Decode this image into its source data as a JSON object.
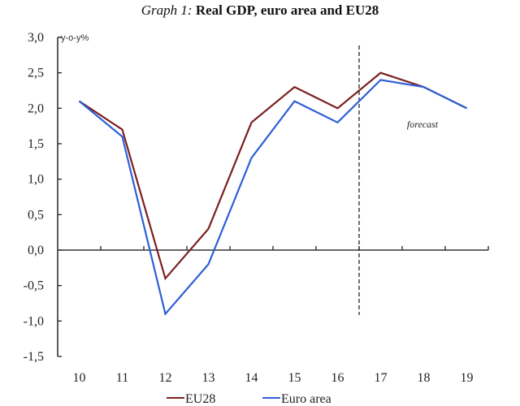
{
  "chart_data": {
    "type": "line",
    "title_prefix": "Graph 1:",
    "title": "Real GDP, euro area and EU28",
    "ylabel": "y-o-y%",
    "xlabel": "",
    "categories": [
      "10",
      "11",
      "12",
      "13",
      "14",
      "15",
      "16",
      "17",
      "18",
      "19"
    ],
    "ylim": [
      -1.5,
      3.0
    ],
    "yticks": [
      "3,0",
      "2,5",
      "2,0",
      "1,5",
      "1,0",
      "0,5",
      "0,0",
      "-0,5",
      "-1,0",
      "-1,5"
    ],
    "ytick_values": [
      3.0,
      2.5,
      2.0,
      1.5,
      1.0,
      0.5,
      0.0,
      -0.5,
      -1.0,
      -1.5
    ],
    "series": [
      {
        "name": "EU28",
        "color": "#7b1f1f",
        "values": [
          2.1,
          1.7,
          -0.4,
          0.3,
          1.8,
          2.3,
          2.0,
          2.5,
          2.3,
          2.0
        ]
      },
      {
        "name": "Euro area",
        "color": "#2e5fd6",
        "values": [
          2.1,
          1.6,
          -0.9,
          -0.2,
          1.3,
          2.1,
          1.8,
          2.4,
          2.3,
          2.0
        ]
      }
    ],
    "annotations": [
      {
        "text": "forecast",
        "type": "label"
      },
      {
        "type": "vertical-dashed-line",
        "between": [
          "16",
          "17"
        ]
      }
    ],
    "annotation_forecast_label": "forecast",
    "grid": false,
    "legend": {
      "placement": "bottom",
      "entries": [
        "EU28",
        "Euro area"
      ]
    }
  }
}
